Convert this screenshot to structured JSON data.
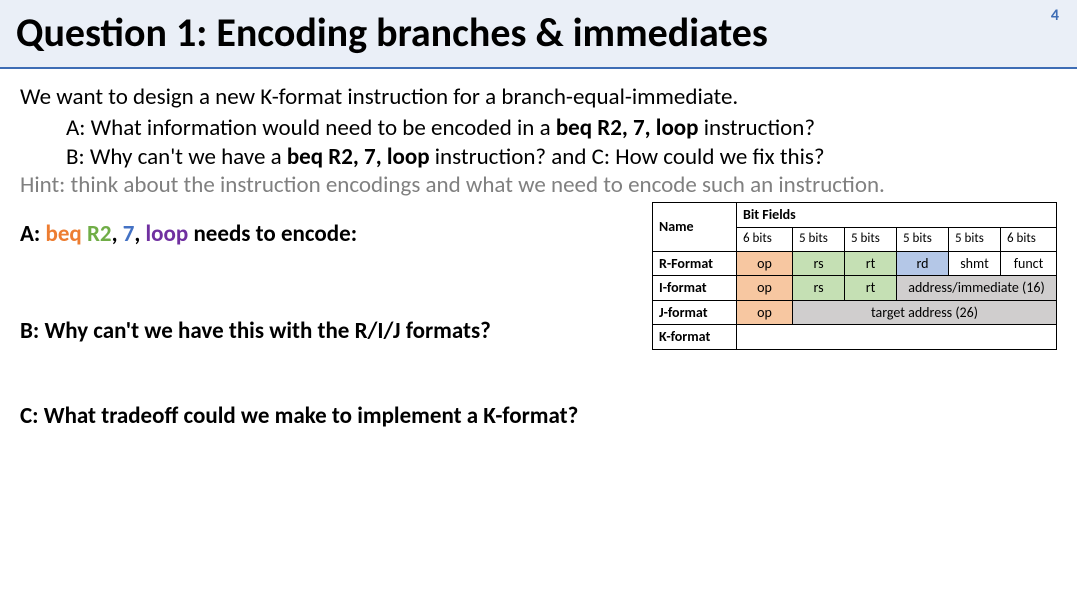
{
  "page_number": "4",
  "title": "Question 1: Encoding branches & immediates",
  "intro": "We want to design a new K-format instruction for a branch-equal-immediate.",
  "lineA_pre": "A: What information would need to be encoded in a ",
  "lineA_instr": "beq R2, 7, loop",
  "lineA_post": " instruction?",
  "lineB_pre": "B: Why can't we have a ",
  "lineB_instr": "beq R2, 7, loop",
  "lineB_post": " instruction? and C: How could we fix this?",
  "hint": "Hint: think about the instruction encodings and what we need to encode such an instruction.",
  "secA_pre": "A: ",
  "secA_beq": "beq",
  "secA_sp1": " ",
  "secA_r2": "R2",
  "secA_c1": ", ",
  "secA_7": "7",
  "secA_c2": ", ",
  "secA_loop": "loop",
  "secA_post": " needs to encode:",
  "secB": "B: Why can't we have this with the R/I/J formats?",
  "secC": "C: What tradeoff could we make to implement a K-format?",
  "table": {
    "hdr_name": "Name",
    "hdr_bitfields": "Bit Fields",
    "bits": {
      "b6a": "6 bits",
      "b5a": "5 bits",
      "b5b": "5 bits",
      "b5c": "5 bits",
      "b5d": "5 bits",
      "b6b": "6 bits"
    },
    "r": {
      "name": "R-Format",
      "op": "op",
      "rs": "rs",
      "rt": "rt",
      "rd": "rd",
      "shmt": "shmt",
      "funct": "funct"
    },
    "i": {
      "name": "I-format",
      "op": "op",
      "rs": "rs",
      "rt": "rt",
      "addr": "address/immediate (16)"
    },
    "j": {
      "name": "J-format",
      "op": "op",
      "target": "target address (26)"
    },
    "k": {
      "name": "K-format",
      "blank": ""
    }
  },
  "colors": {
    "title_bg": "#eaeff7",
    "title_rule": "#3e6db5",
    "accent_blue": "#3e6db5",
    "hint_gray": "#808080",
    "beq": "#ed7d31",
    "r2": "#70ad47",
    "seven": "#4472c4",
    "loop": "#7030a0",
    "cell_orange": "#f7c7a1",
    "cell_green": "#c5e0b4",
    "cell_blue": "#b4c7e7",
    "cell_gray": "#d0cece"
  }
}
